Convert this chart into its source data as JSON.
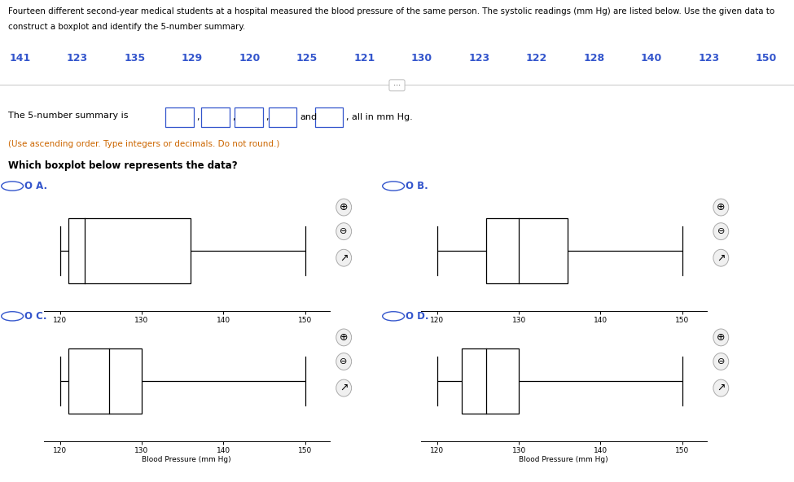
{
  "title_line1": "Fourteen different second-year medical students at a hospital measured the blood pressure of the same person. The systolic readings (mm Hg) are listed below. Use the given data to",
  "title_line2": "construct a boxplot and identify the 5-number summary.",
  "data_display": [
    "141",
    "123",
    "135",
    "129",
    "120",
    "125",
    "121",
    "130",
    "123",
    "122",
    "128",
    "140",
    "123",
    "150"
  ],
  "summary_prefix": "The 5-number summary is",
  "summary_suffix": ", all in mm Hg.",
  "instruction": "(Use ascending order. Type integers or decimals. Do not round.)",
  "question": "Which boxplot below represents the data?",
  "xlabel": "Blood Pressure (mm Hg)",
  "xlim": [
    118,
    153
  ],
  "xticks": [
    120,
    130,
    140,
    150
  ],
  "color_blue": "#3355CC",
  "color_black": "#000000",
  "color_orange": "#CC6600",
  "color_gray": "#999999",
  "color_light_gray": "#CCCCCC",
  "background": "#FFFFFF",
  "panels": {
    "A": {
      "min": 120,
      "q1": 121,
      "median": 123,
      "q3": 136,
      "max": 150
    },
    "B": {
      "min": 120,
      "q1": 126,
      "median": 130,
      "q3": 136,
      "max": 150
    },
    "C": {
      "min": 120,
      "q1": 121,
      "median": 126,
      "q3": 130,
      "max": 150
    },
    "D": {
      "min": 120,
      "q1": 123,
      "median": 126,
      "q3": 130,
      "max": 150
    }
  }
}
